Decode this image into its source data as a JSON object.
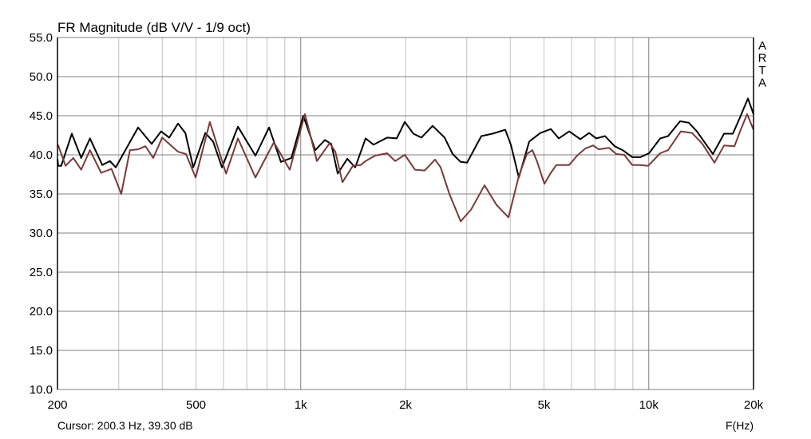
{
  "chart_data": {
    "type": "line",
    "title": "FR Magnitude (dB V/V - 1/9 oct)",
    "xlabel": "F(Hz)",
    "ylabel": "",
    "x_scale": "log",
    "xlim": [
      200,
      20000
    ],
    "ylim": [
      10,
      55
    ],
    "grid": true,
    "x_major_ticks": [
      1000,
      10000
    ],
    "x_minor_ticks": [
      300,
      400,
      500,
      600,
      700,
      800,
      900,
      2000,
      3000,
      4000,
      5000,
      6000,
      7000,
      8000,
      9000
    ],
    "x_tick_labels": [
      {
        "value": 200,
        "label": "200"
      },
      {
        "value": 500,
        "label": "500"
      },
      {
        "value": 1000,
        "label": "1k"
      },
      {
        "value": 2000,
        "label": "2k"
      },
      {
        "value": 5000,
        "label": "5k"
      },
      {
        "value": 10000,
        "label": "10k"
      },
      {
        "value": 20000,
        "label": "20k"
      }
    ],
    "y_ticks": [
      55,
      50,
      45,
      40,
      35,
      30,
      25,
      20,
      15,
      10
    ],
    "y_tick_labels": [
      "55.0",
      "50.0",
      "45.0",
      "40.0",
      "35.0",
      "30.0",
      "25.0",
      "20.0",
      "15.0",
      "10.0"
    ],
    "series": [
      {
        "color": "#000000",
        "points": [
          [
            200,
            39.5
          ],
          [
            201,
            38.6
          ],
          [
            205,
            38.6
          ],
          [
            220,
            42.7
          ],
          [
            234,
            39.6
          ],
          [
            248,
            42.1
          ],
          [
            269,
            38.7
          ],
          [
            283,
            39.2
          ],
          [
            294,
            38.4
          ],
          [
            318,
            41.1
          ],
          [
            341,
            43.5
          ],
          [
            373,
            41.4
          ],
          [
            397,
            43.0
          ],
          [
            419,
            42.2
          ],
          [
            444,
            44.0
          ],
          [
            466,
            42.8
          ],
          [
            491,
            38.4
          ],
          [
            532,
            42.8
          ],
          [
            560,
            41.7
          ],
          [
            594,
            38.4
          ],
          [
            660,
            43.6
          ],
          [
            741,
            39.9
          ],
          [
            811,
            43.5
          ],
          [
            877,
            39.1
          ],
          [
            940,
            39.6
          ],
          [
            1017,
            45.0
          ],
          [
            1101,
            40.6
          ],
          [
            1173,
            41.9
          ],
          [
            1224,
            41.4
          ],
          [
            1277,
            37.6
          ],
          [
            1361,
            39.5
          ],
          [
            1434,
            38.4
          ],
          [
            1536,
            42.1
          ],
          [
            1619,
            41.3
          ],
          [
            1771,
            42.2
          ],
          [
            1887,
            42.1
          ],
          [
            1990,
            44.2
          ],
          [
            2107,
            42.7
          ],
          [
            2222,
            42.2
          ],
          [
            2393,
            43.7
          ],
          [
            2591,
            42.2
          ],
          [
            2732,
            40.1
          ],
          [
            2881,
            39.1
          ],
          [
            3005,
            39.0
          ],
          [
            3303,
            42.4
          ],
          [
            3557,
            42.7
          ],
          [
            3870,
            43.2
          ],
          [
            4015,
            41.3
          ],
          [
            4234,
            37.1
          ],
          [
            4535,
            41.7
          ],
          [
            4882,
            42.8
          ],
          [
            5231,
            43.3
          ],
          [
            5514,
            42.1
          ],
          [
            5907,
            43.0
          ],
          [
            6359,
            42.0
          ],
          [
            6739,
            42.8
          ],
          [
            7068,
            42.1
          ],
          [
            7489,
            42.4
          ],
          [
            7980,
            41.1
          ],
          [
            8413,
            40.6
          ],
          [
            8965,
            39.7
          ],
          [
            9452,
            39.7
          ],
          [
            10016,
            40.2
          ],
          [
            10785,
            42.1
          ],
          [
            11368,
            42.4
          ],
          [
            12302,
            44.3
          ],
          [
            13037,
            44.1
          ],
          [
            13745,
            43.0
          ],
          [
            15282,
            40.1
          ],
          [
            16456,
            42.7
          ],
          [
            17442,
            42.7
          ],
          [
            18290,
            44.8
          ],
          [
            19270,
            47.2
          ],
          [
            20000,
            45.2
          ]
        ]
      },
      {
        "color": "#7a3a3a",
        "points": [
          [
            200,
            41.3
          ],
          [
            201,
            41.2
          ],
          [
            211,
            38.6
          ],
          [
            222,
            39.6
          ],
          [
            234,
            38.1
          ],
          [
            248,
            40.6
          ],
          [
            267,
            37.7
          ],
          [
            286,
            38.2
          ],
          [
            305,
            35.0
          ],
          [
            323,
            40.6
          ],
          [
            341,
            40.7
          ],
          [
            358,
            41.1
          ],
          [
            377,
            39.6
          ],
          [
            400,
            42.2
          ],
          [
            444,
            40.4
          ],
          [
            468,
            40.1
          ],
          [
            499,
            37.1
          ],
          [
            548,
            44.2
          ],
          [
            610,
            37.6
          ],
          [
            660,
            42.1
          ],
          [
            741,
            37.1
          ],
          [
            837,
            41.6
          ],
          [
            930,
            38.1
          ],
          [
            1028,
            45.2
          ],
          [
            1113,
            39.2
          ],
          [
            1211,
            41.5
          ],
          [
            1257,
            40.4
          ],
          [
            1318,
            36.5
          ],
          [
            1412,
            38.6
          ],
          [
            1488,
            38.7
          ],
          [
            1536,
            39.2
          ],
          [
            1636,
            39.9
          ],
          [
            1771,
            40.2
          ],
          [
            1868,
            39.2
          ],
          [
            1990,
            40.0
          ],
          [
            2130,
            38.1
          ],
          [
            2271,
            38.0
          ],
          [
            2432,
            39.4
          ],
          [
            2523,
            38.4
          ],
          [
            2674,
            35.0
          ],
          [
            2881,
            31.5
          ],
          [
            3085,
            33.0
          ],
          [
            3374,
            36.1
          ],
          [
            3652,
            33.6
          ],
          [
            3953,
            32.0
          ],
          [
            4234,
            37.3
          ],
          [
            4464,
            40.1
          ],
          [
            4632,
            40.6
          ],
          [
            4781,
            39.1
          ],
          [
            5014,
            36.3
          ],
          [
            5231,
            37.7
          ],
          [
            5427,
            38.7
          ],
          [
            5907,
            38.7
          ],
          [
            6225,
            39.9
          ],
          [
            6563,
            40.8
          ],
          [
            6918,
            41.2
          ],
          [
            7179,
            40.7
          ],
          [
            7692,
            40.9
          ],
          [
            8064,
            40.1
          ],
          [
            8500,
            40.0
          ],
          [
            8965,
            38.7
          ],
          [
            9452,
            38.7
          ],
          [
            9964,
            38.6
          ],
          [
            10785,
            40.2
          ],
          [
            11368,
            40.6
          ],
          [
            12368,
            43.0
          ],
          [
            13316,
            42.8
          ],
          [
            14265,
            41.4
          ],
          [
            15444,
            39.0
          ],
          [
            16456,
            41.2
          ],
          [
            17629,
            41.1
          ],
          [
            18290,
            43.0
          ],
          [
            19172,
            45.2
          ],
          [
            20000,
            43.2
          ]
        ]
      }
    ]
  },
  "watermark": [
    "A",
    "R",
    "T",
    "A"
  ],
  "cursor_readout": "Cursor: 200.3 Hz, 39.30 dB"
}
